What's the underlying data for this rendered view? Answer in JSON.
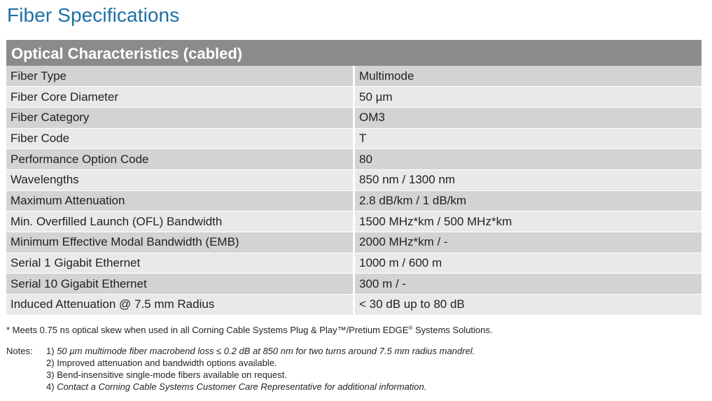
{
  "page": {
    "title": "Fiber Specifications"
  },
  "table": {
    "header": "Optical Characteristics (cabled)",
    "rows": [
      {
        "label": "Fiber Type",
        "value": "Multimode"
      },
      {
        "label": "Fiber Core Diameter",
        "value": "50 µm"
      },
      {
        "label": "Fiber Category",
        "value": "OM3"
      },
      {
        "label": "Fiber Code",
        "value": "T"
      },
      {
        "label": "Performance Option Code",
        "value": "80"
      },
      {
        "label": "Wavelengths",
        "value": "850 nm / 1300 nm"
      },
      {
        "label": "Maximum Attenuation",
        "value": "2.8 dB/km / 1 dB/km"
      },
      {
        "label": "Min. Overfilled Launch (OFL) Bandwidth",
        "value": "1500 MHz*km / 500 MHz*km"
      },
      {
        "label": "Minimum Effective Modal Bandwidth (EMB)",
        "value": "2000 MHz*km / -"
      },
      {
        "label": "Serial 1 Gigabit Ethernet",
        "value": "1000 m / 600 m"
      },
      {
        "label": "Serial 10 Gigabit Ethernet",
        "value": "300 m / -"
      },
      {
        "label": "Induced Attenuation @ 7.5 mm Radius",
        "value": "< 30 dB up to 80 dB"
      }
    ]
  },
  "footnote": {
    "text_before": "* Meets 0.75 ns optical skew when used in all Corning Cable Systems Plug & Play™/Pretium EDGE",
    "registered_mark": "®",
    "text_after": " Systems Solutions."
  },
  "notes": {
    "label": "Notes:",
    "items": [
      {
        "number": "1)",
        "text": "50 µm multimode fiber macrobend loss ≤ 0.2 dB at 850 nm for two turns around 7.5 mm radius mandrel."
      },
      {
        "number": "2)",
        "text": "Improved attenuation and bandwidth options available."
      },
      {
        "number": "3)",
        "text": "Bend-insensitive single-mode fibers available on request."
      },
      {
        "number": "4)",
        "text": "Contact a Corning Cable Systems Customer Care Representative for additional information."
      }
    ]
  },
  "colors": {
    "title": "#1d6fa5",
    "header_bg": "#8a8b8d",
    "row_dark": "#d2d3d5",
    "row_light": "#e8e9ea"
  }
}
